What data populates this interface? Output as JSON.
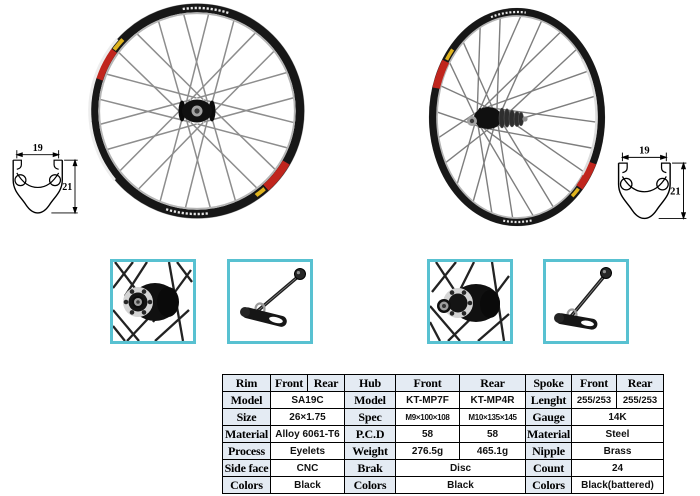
{
  "rim_diagram": {
    "inner_width": "19",
    "section_height": "21"
  },
  "colors": {
    "thumb_border": "#58c1d1",
    "table_label_bg": "#e4ebf3",
    "decal_red": "#c0251d",
    "decal_yellow": "#dfb31e"
  },
  "table": {
    "header": [
      "Rim",
      "Front",
      "Rear",
      "Hub",
      "Front",
      "Rear",
      "Spoke",
      "Front",
      "Rear"
    ],
    "rows": {
      "model": [
        "Model",
        "SA19C",
        "Model",
        "KT-MP7F",
        "KT-MP4R",
        "Lenght",
        "255/253",
        "255/253"
      ],
      "size": [
        "Size",
        "26×1.75",
        "Spec",
        "M9×100×108",
        "M10×135×145",
        "Gauge",
        "14K"
      ],
      "material": [
        "Material",
        "Alloy 6061-T6",
        "P.C.D",
        "58",
        "58",
        "Material",
        "Steel"
      ],
      "process": [
        "Process",
        "Eyelets",
        "Weight",
        "276.5g",
        "465.1g",
        "Nipple",
        "Brass"
      ],
      "sideface": [
        "Side face",
        "CNC",
        "Brak",
        "Disc",
        "Count",
        "24"
      ],
      "colors": [
        "Colors",
        "Black",
        "Colors",
        "Black",
        "Colors",
        "Black(battered)"
      ]
    }
  }
}
